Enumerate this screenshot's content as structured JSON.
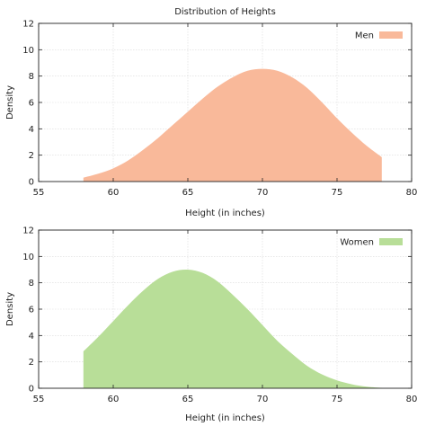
{
  "chart_data": [
    {
      "type": "area",
      "title": "Distribution of Heights",
      "xlabel": "Height (in inches)",
      "ylabel": "Density",
      "xlim": [
        55,
        80
      ],
      "ylim": [
        0,
        12
      ],
      "xticks": [
        55,
        60,
        65,
        70,
        75,
        80
      ],
      "yticks": [
        0,
        2,
        4,
        6,
        8,
        10,
        12
      ],
      "grid": true,
      "legend_position": "top-right",
      "series": [
        {
          "name": "Men",
          "color": "#f9b99a",
          "x": [
            58,
            59,
            60,
            61,
            62,
            63,
            64,
            65,
            66,
            67,
            68,
            69,
            70,
            71,
            72,
            73,
            74,
            75,
            76,
            77,
            78
          ],
          "y": [
            0.3,
            0.6,
            1.0,
            1.6,
            2.4,
            3.3,
            4.3,
            5.3,
            6.3,
            7.2,
            7.9,
            8.4,
            8.55,
            8.4,
            7.9,
            7.1,
            6.0,
            4.8,
            3.7,
            2.7,
            1.85
          ]
        }
      ]
    },
    {
      "type": "area",
      "title": "",
      "xlabel": "Height (in inches)",
      "ylabel": "Density",
      "xlim": [
        55,
        80
      ],
      "ylim": [
        0,
        12
      ],
      "xticks": [
        55,
        60,
        65,
        70,
        75,
        80
      ],
      "yticks": [
        0,
        2,
        4,
        6,
        8,
        10,
        12
      ],
      "grid": true,
      "legend_position": "top-right",
      "series": [
        {
          "name": "Women",
          "color": "#b8de98",
          "x": [
            58,
            59,
            60,
            61,
            62,
            63,
            64,
            65,
            66,
            67,
            68,
            69,
            70,
            71,
            72,
            73,
            74,
            75,
            76,
            77,
            78
          ],
          "y": [
            2.8,
            3.9,
            5.1,
            6.3,
            7.4,
            8.3,
            8.85,
            9.0,
            8.75,
            8.1,
            7.1,
            6.0,
            4.8,
            3.6,
            2.6,
            1.7,
            1.05,
            0.6,
            0.3,
            0.12,
            0.03
          ]
        }
      ]
    }
  ]
}
